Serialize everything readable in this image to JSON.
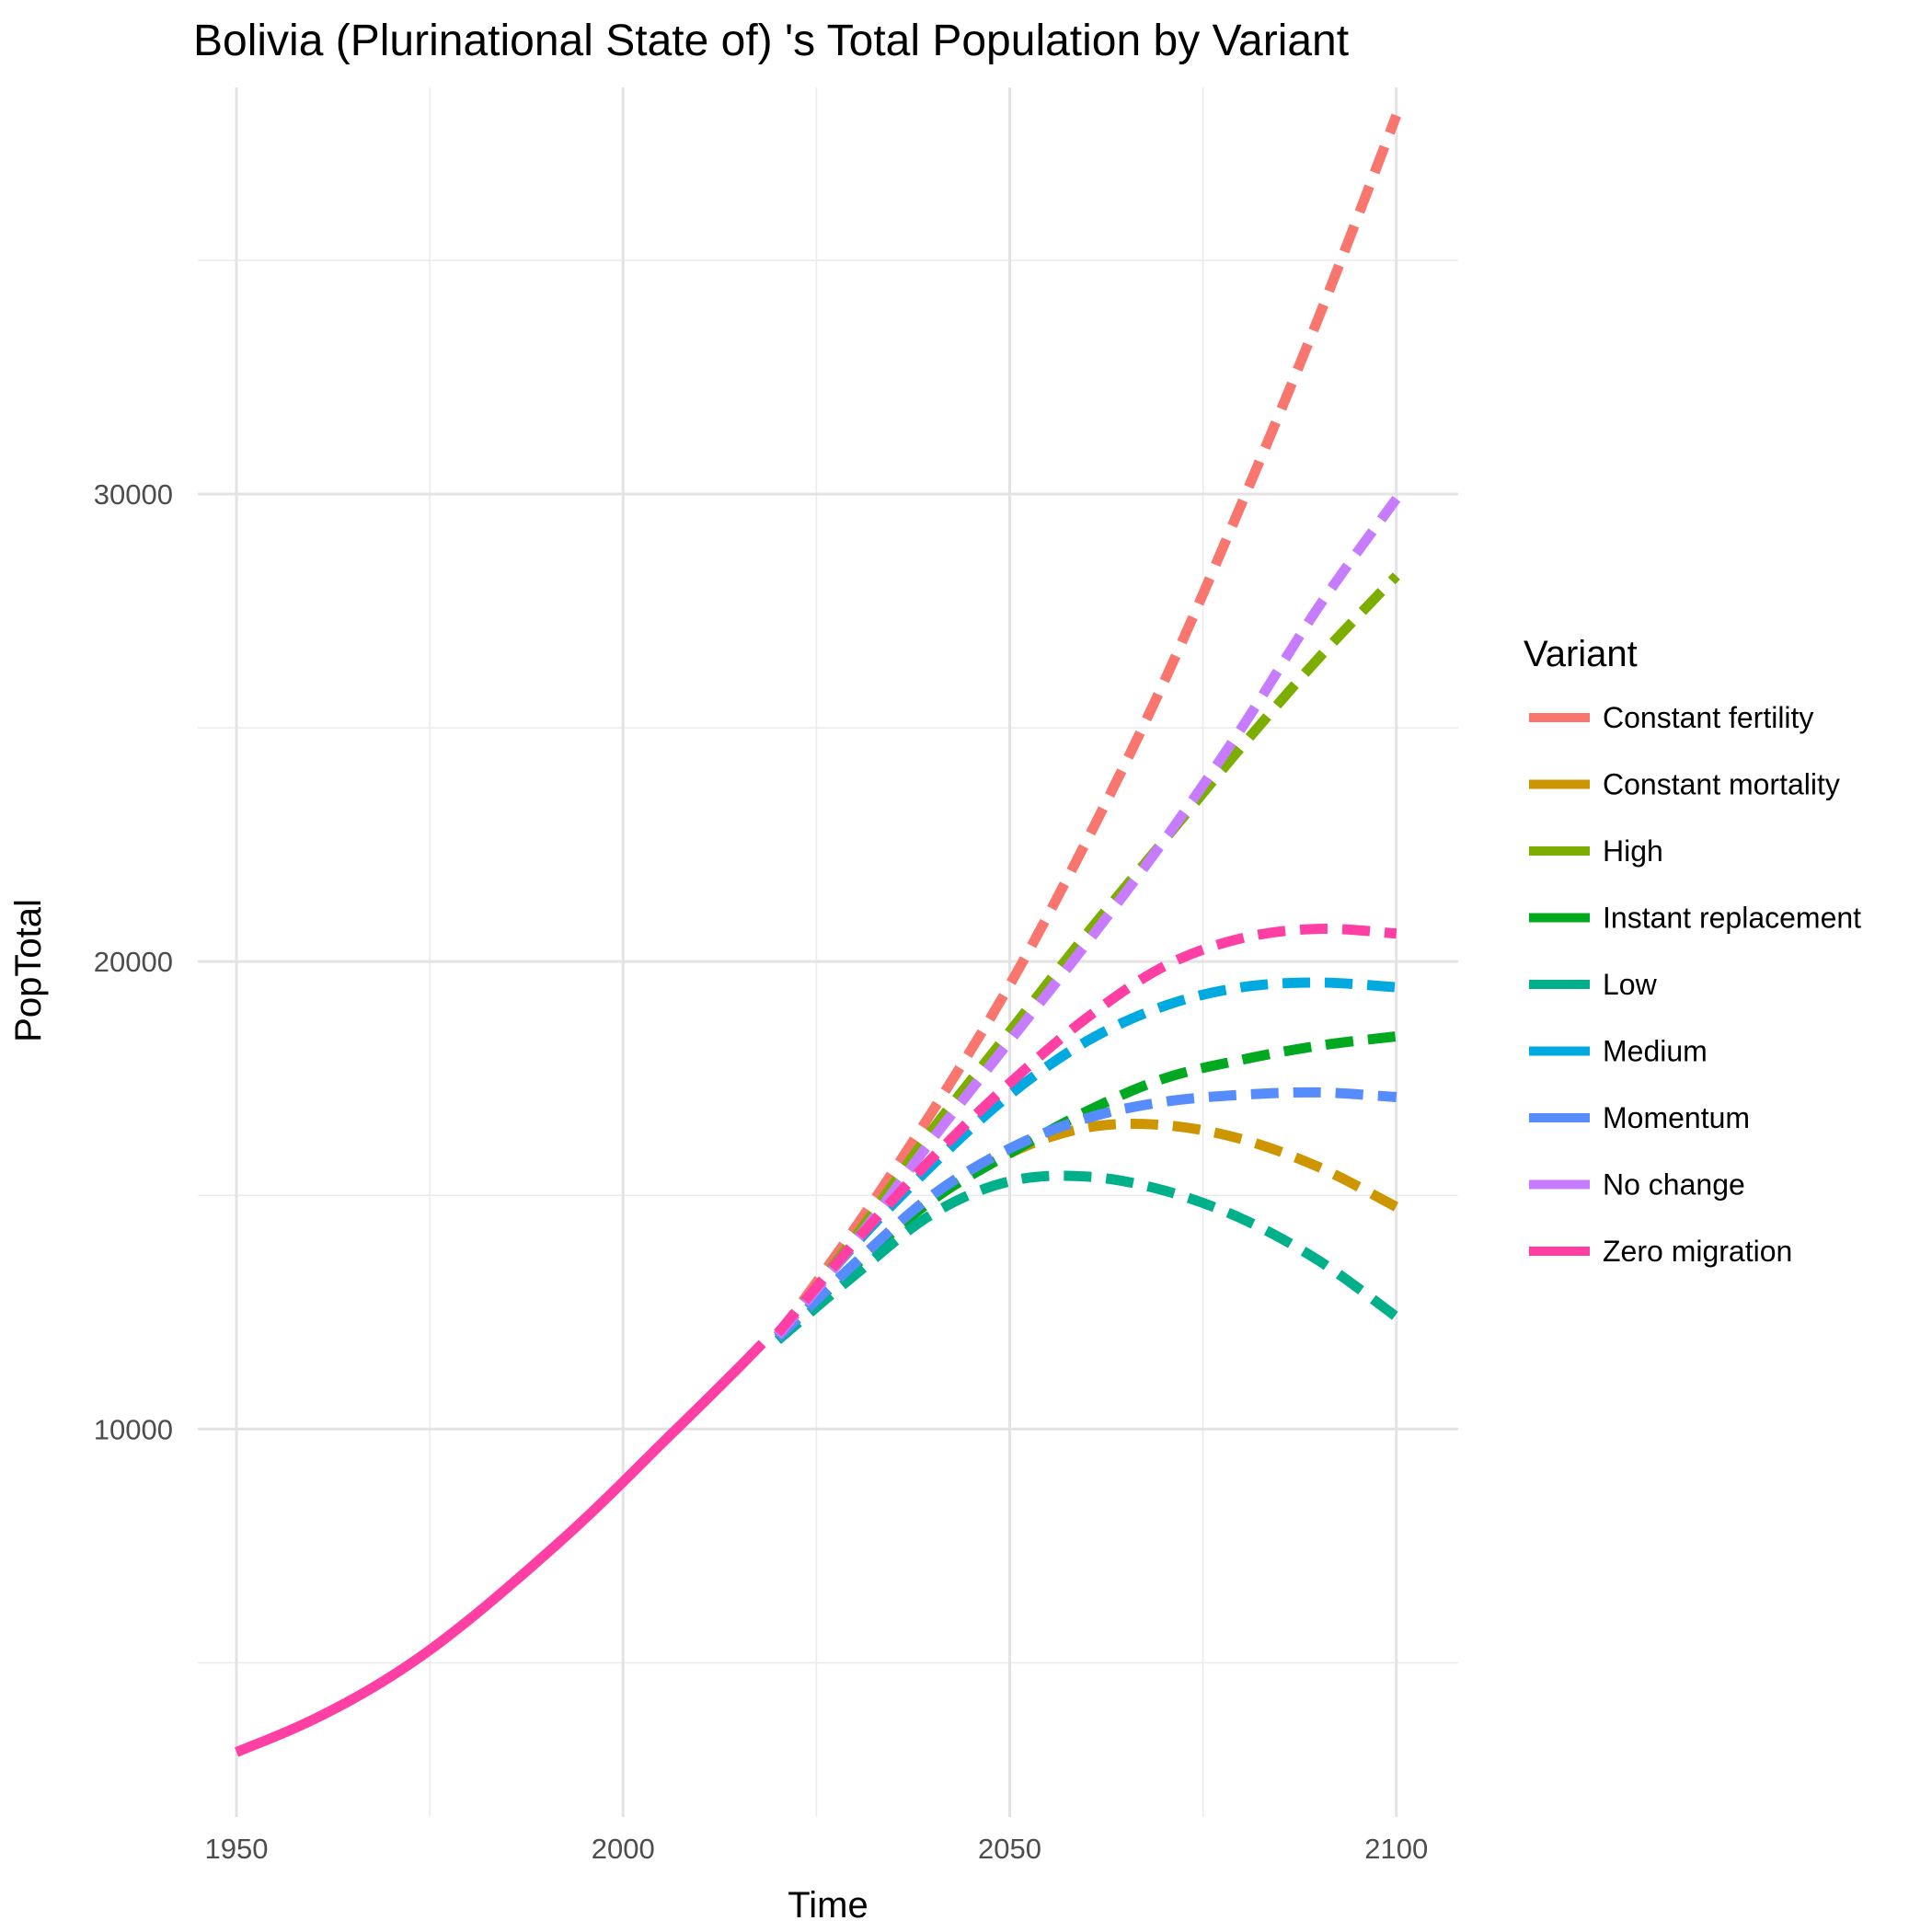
{
  "chart_data": {
    "type": "line",
    "title": "Bolivia (Plurinational State of) 's Total Population by Variant",
    "xlabel": "Time",
    "ylabel": "PopTotal",
    "xlim": [
      1945,
      2108
    ],
    "ylim": [
      1700,
      38700
    ],
    "x_ticks": [
      1950,
      2000,
      2050,
      2100
    ],
    "y_ticks": [
      10000,
      20000,
      30000
    ],
    "grid": true,
    "legend_title": "Variant",
    "legend_position": "right",
    "historical": {
      "color": "#FF3FA4",
      "x": [
        1950,
        1955,
        1960,
        1965,
        1970,
        1975,
        1980,
        1985,
        1990,
        1995,
        2000,
        2005,
        2010,
        2015,
        2018
      ],
      "y": [
        3090,
        3420,
        3790,
        4220,
        4710,
        5270,
        5910,
        6600,
        7320,
        8070,
        8870,
        9690,
        10500,
        11320,
        11830
      ]
    },
    "series": [
      {
        "name": "Constant fertility",
        "color": "#F8766D",
        "x": [
          2020,
          2030,
          2040,
          2050,
          2060,
          2070,
          2080,
          2090,
          2100
        ],
        "y": [
          12000,
          14300,
          16800,
          19500,
          22600,
          26000,
          29800,
          33800,
          38100
        ]
      },
      {
        "name": "Constant mortality",
        "color": "#CD9600",
        "x": [
          2020,
          2030,
          2040,
          2050,
          2060,
          2070,
          2080,
          2090,
          2100
        ],
        "y": [
          11950,
          13500,
          14900,
          15900,
          16450,
          16500,
          16200,
          15600,
          14750
        ]
      },
      {
        "name": "High",
        "color": "#7CAE00",
        "x": [
          2020,
          2030,
          2040,
          2050,
          2060,
          2070,
          2080,
          2090,
          2100
        ],
        "y": [
          12000,
          14100,
          16400,
          18500,
          20600,
          22600,
          24600,
          26500,
          28250
        ]
      },
      {
        "name": "Instant replacement",
        "color": "#00A91F",
        "x": [
          2020,
          2030,
          2040,
          2050,
          2060,
          2070,
          2080,
          2090,
          2100
        ],
        "y": [
          11950,
          13500,
          14900,
          15900,
          16800,
          17500,
          17900,
          18200,
          18400
        ]
      },
      {
        "name": "Low",
        "color": "#00B08B",
        "x": [
          2020,
          2030,
          2040,
          2050,
          2060,
          2070,
          2080,
          2090,
          2100
        ],
        "y": [
          11900,
          13300,
          14600,
          15300,
          15400,
          15100,
          14500,
          13600,
          12400
        ]
      },
      {
        "name": "Medium",
        "color": "#00A9DF",
        "x": [
          2020,
          2030,
          2040,
          2050,
          2060,
          2070,
          2080,
          2090,
          2100
        ],
        "y": [
          12000,
          13950,
          15650,
          17150,
          18300,
          19050,
          19450,
          19550,
          19450
        ]
      },
      {
        "name": "Momentum",
        "color": "#568CFE",
        "x": [
          2020,
          2030,
          2040,
          2050,
          2060,
          2070,
          2080,
          2090,
          2100
        ],
        "y": [
          11950,
          13550,
          15000,
          16000,
          16650,
          17000,
          17150,
          17200,
          17100
        ]
      },
      {
        "name": "No change",
        "color": "#C77CFF",
        "x": [
          2020,
          2030,
          2040,
          2050,
          2060,
          2070,
          2080,
          2090,
          2100
        ],
        "y": [
          12000,
          14000,
          16200,
          18300,
          20400,
          22600,
          25000,
          27600,
          29900
        ]
      },
      {
        "name": "Zero migration",
        "color": "#FF3FA4",
        "x": [
          2020,
          2030,
          2040,
          2050,
          2060,
          2070,
          2080,
          2090,
          2100
        ],
        "y": [
          12050,
          14000,
          15800,
          17400,
          18800,
          19900,
          20500,
          20700,
          20600
        ]
      }
    ]
  }
}
